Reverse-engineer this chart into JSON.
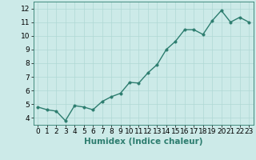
{
  "x": [
    0,
    1,
    2,
    3,
    4,
    5,
    6,
    7,
    8,
    9,
    10,
    11,
    12,
    13,
    14,
    15,
    16,
    17,
    18,
    19,
    20,
    21,
    22,
    23
  ],
  "y": [
    4.8,
    4.6,
    4.5,
    3.8,
    4.9,
    4.8,
    4.6,
    5.2,
    5.55,
    5.8,
    6.6,
    6.55,
    7.3,
    7.9,
    9.0,
    9.6,
    10.45,
    10.45,
    10.1,
    11.1,
    11.85,
    11.0,
    11.35,
    11.0
  ],
  "line_color": "#2d7d6f",
  "marker_color": "#2d7d6f",
  "bg_color": "#cceae8",
  "grid_color": "#b0d8d4",
  "xlabel": "Humidex (Indice chaleur)",
  "xlim": [
    -0.5,
    23.5
  ],
  "ylim": [
    3.5,
    12.5
  ],
  "yticks": [
    4,
    5,
    6,
    7,
    8,
    9,
    10,
    11,
    12
  ],
  "xticks": [
    0,
    1,
    2,
    3,
    4,
    5,
    6,
    7,
    8,
    9,
    10,
    11,
    12,
    13,
    14,
    15,
    16,
    17,
    18,
    19,
    20,
    21,
    22,
    23
  ],
  "marker_size": 2.5,
  "line_width": 1.0,
  "xlabel_fontsize": 7.5,
  "tick_fontsize": 6.5
}
